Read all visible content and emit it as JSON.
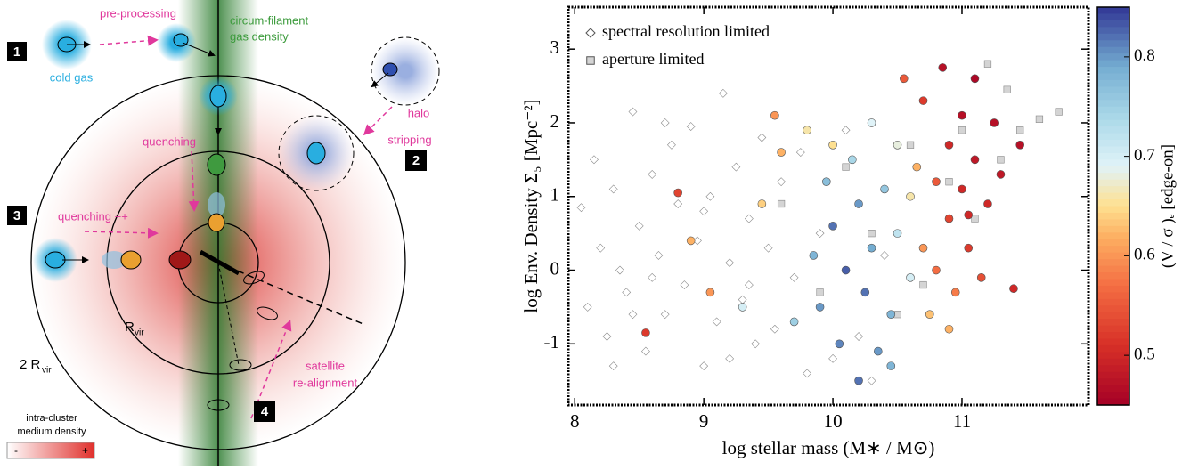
{
  "diagram": {
    "pre_processing": "pre-processing",
    "filament_label": [
      "circum-filament",
      "gas density"
    ],
    "cold_gas": "cold gas",
    "steps": [
      "1",
      "2",
      "3",
      "4"
    ],
    "quenching": "quenching",
    "quenching_pp": "quenching ++",
    "halo_stripping": [
      "halo",
      "stripping"
    ],
    "r_vir": [
      "R",
      "vir"
    ],
    "two_r_vir": [
      "2 R",
      "vir"
    ],
    "satellite": [
      "satellite",
      "re-alignment"
    ],
    "icm_label": [
      "intra-cluster",
      "medium density"
    ],
    "icm_scale": [
      "-",
      "+"
    ]
  },
  "chart_data": {
    "type": "scatter",
    "xlabel": "log stellar mass (M∗ / M⊙)",
    "ylabel": "log Env. Density Σ₅ [Mpc⁻²]",
    "xlim": [
      7.95,
      11.98
    ],
    "ylim": [
      -1.83,
      3.57
    ],
    "xticks": [
      8,
      9,
      10,
      11
    ],
    "yticks": [
      -1,
      0,
      1,
      2,
      3
    ],
    "colorbar": {
      "label": "(V / σ )ₑ  [edge-on]",
      "clim": [
        0.45,
        0.85
      ],
      "ticks": [
        0.5,
        0.6,
        0.7,
        0.8
      ],
      "colormap": "RdYlBu"
    },
    "series": [
      {
        "name": "spectral resolution limited",
        "marker": "diamond",
        "color": "#ffffff",
        "x": [
          8.05,
          8.1,
          8.15,
          8.2,
          8.25,
          8.3,
          8.35,
          8.4,
          8.45,
          8.5,
          8.55,
          8.6,
          8.65,
          8.7,
          8.75,
          8.8,
          8.85,
          8.9,
          8.95,
          9.0,
          9.05,
          9.1,
          9.15,
          9.2,
          9.25,
          9.3,
          9.35,
          9.4,
          9.45,
          9.5,
          9.55,
          9.6,
          9.7,
          9.75,
          9.8,
          9.9,
          10.0,
          10.1,
          10.2,
          10.3,
          10.4,
          8.3,
          8.7,
          9.2,
          8.45,
          9.0,
          8.6,
          9.35
        ],
        "y": [
          0.85,
          -0.5,
          1.5,
          0.3,
          -0.9,
          1.1,
          0.0,
          -0.3,
          2.15,
          0.6,
          -1.1,
          1.3,
          0.2,
          -0.6,
          1.7,
          0.9,
          -0.2,
          1.95,
          0.4,
          -1.3,
          1.0,
          -0.7,
          2.4,
          0.1,
          1.4,
          -0.4,
          0.7,
          -1.0,
          1.8,
          0.3,
          -0.8,
          1.2,
          -0.1,
          1.6,
          -1.4,
          0.5,
          -1.2,
          1.9,
          -0.9,
          -1.5,
          0.2,
          -1.3,
          2.0,
          -1.2,
          -0.6,
          0.8,
          -0.1,
          -0.2
        ]
      },
      {
        "name": "aperture limited",
        "marker": "square",
        "color": "#d4d4d4",
        "x": [
          9.6,
          9.9,
          10.1,
          10.3,
          10.5,
          10.6,
          10.9,
          11.1,
          11.2,
          11.35,
          11.45,
          11.6,
          11.75,
          11.3,
          10.7,
          11.0
        ],
        "y": [
          0.9,
          -0.3,
          1.4,
          0.5,
          -0.6,
          1.7,
          1.2,
          0.7,
          2.8,
          2.45,
          1.9,
          2.05,
          2.15,
          1.5,
          -0.2,
          1.9
        ]
      },
      {
        "marker": "circle",
        "x": [
          8.8,
          8.55,
          9.05,
          8.9,
          9.45,
          9.55,
          9.7,
          9.8,
          9.85,
          9.9,
          9.95,
          10.0,
          10.05,
          10.1,
          10.15,
          10.2,
          10.25,
          10.3,
          10.3,
          10.35,
          10.4,
          10.45,
          10.5,
          10.5,
          10.55,
          10.6,
          10.6,
          10.65,
          10.7,
          10.7,
          10.75,
          10.8,
          10.8,
          10.85,
          10.9,
          10.9,
          10.95,
          11.0,
          11.0,
          11.05,
          11.1,
          11.1,
          11.15,
          11.2,
          11.25,
          11.3,
          11.4,
          11.45,
          10.45,
          10.2,
          9.6,
          9.3,
          10.0,
          10.9,
          11.05
        ],
        "y": [
          1.05,
          -0.85,
          -0.3,
          0.4,
          0.9,
          2.1,
          -0.7,
          1.9,
          0.2,
          -0.5,
          1.2,
          0.6,
          -1.0,
          0.0,
          1.5,
          0.9,
          -0.3,
          2.0,
          0.3,
          -1.1,
          1.1,
          -0.6,
          1.7,
          0.5,
          2.6,
          1.0,
          -0.1,
          1.4,
          0.3,
          2.3,
          -0.6,
          1.2,
          0.0,
          2.75,
          1.7,
          0.7,
          -0.3,
          1.1,
          2.1,
          0.3,
          2.6,
          1.5,
          -0.1,
          0.9,
          2.0,
          1.3,
          -0.25,
          1.7,
          -1.3,
          -1.5,
          1.6,
          -0.5,
          1.7,
          -0.8,
          0.75
        ],
        "c": [
          0.53,
          0.52,
          0.6,
          0.62,
          0.64,
          0.6,
          0.75,
          0.66,
          0.78,
          0.8,
          0.77,
          0.82,
          0.81,
          0.83,
          0.74,
          0.8,
          0.82,
          0.69,
          0.79,
          0.8,
          0.76,
          0.78,
          0.68,
          0.72,
          0.55,
          0.66,
          0.7,
          0.62,
          0.6,
          0.52,
          0.63,
          0.55,
          0.57,
          0.47,
          0.5,
          0.53,
          0.58,
          0.5,
          0.47,
          0.52,
          0.46,
          0.48,
          0.54,
          0.5,
          0.47,
          0.48,
          0.5,
          0.47,
          0.78,
          0.82,
          0.62,
          0.7,
          0.65,
          0.62,
          0.5
        ]
      }
    ]
  }
}
